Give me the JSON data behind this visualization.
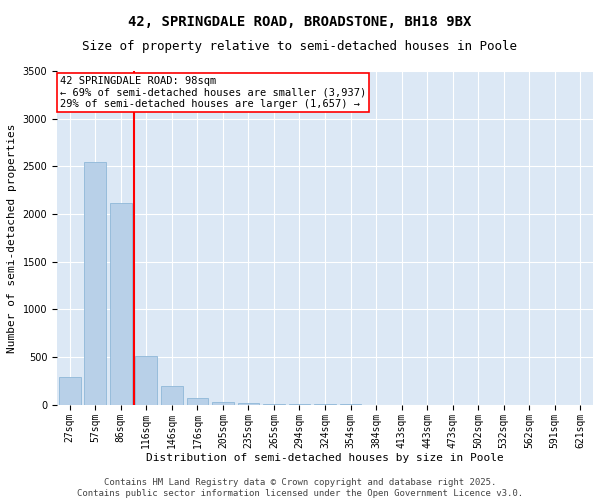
{
  "title_line1": "42, SPRINGDALE ROAD, BROADSTONE, BH18 9BX",
  "title_line2": "Size of property relative to semi-detached houses in Poole",
  "xlabel": "Distribution of semi-detached houses by size in Poole",
  "ylabel": "Number of semi-detached properties",
  "categories": [
    "27sqm",
    "57sqm",
    "86sqm",
    "116sqm",
    "146sqm",
    "176sqm",
    "205sqm",
    "235sqm",
    "265sqm",
    "294sqm",
    "324sqm",
    "354sqm",
    "384sqm",
    "413sqm",
    "443sqm",
    "473sqm",
    "502sqm",
    "532sqm",
    "562sqm",
    "591sqm",
    "621sqm"
  ],
  "values": [
    290,
    2540,
    2120,
    510,
    190,
    70,
    30,
    15,
    8,
    5,
    3,
    2,
    1,
    1,
    0,
    0,
    0,
    0,
    0,
    0,
    0
  ],
  "bar_color": "#b8d0e8",
  "bar_edge_color": "#8fb8d8",
  "vline_x_index": 2,
  "vline_color": "red",
  "annotation_text": "42 SPRINGDALE ROAD: 98sqm\n← 69% of semi-detached houses are smaller (3,937)\n29% of semi-detached houses are larger (1,657) →",
  "annotation_box_color": "white",
  "annotation_box_edge_color": "red",
  "footer_line1": "Contains HM Land Registry data © Crown copyright and database right 2025.",
  "footer_line2": "Contains public sector information licensed under the Open Government Licence v3.0.",
  "ylim": [
    0,
    3500
  ],
  "yticks": [
    0,
    500,
    1000,
    1500,
    2000,
    2500,
    3000,
    3500
  ],
  "background_color": "#dce8f5",
  "grid_color": "white",
  "title_fontsize": 10,
  "subtitle_fontsize": 9,
  "ylabel_fontsize": 8,
  "xlabel_fontsize": 8,
  "tick_fontsize": 7,
  "annotation_fontsize": 7.5,
  "footer_fontsize": 6.5
}
